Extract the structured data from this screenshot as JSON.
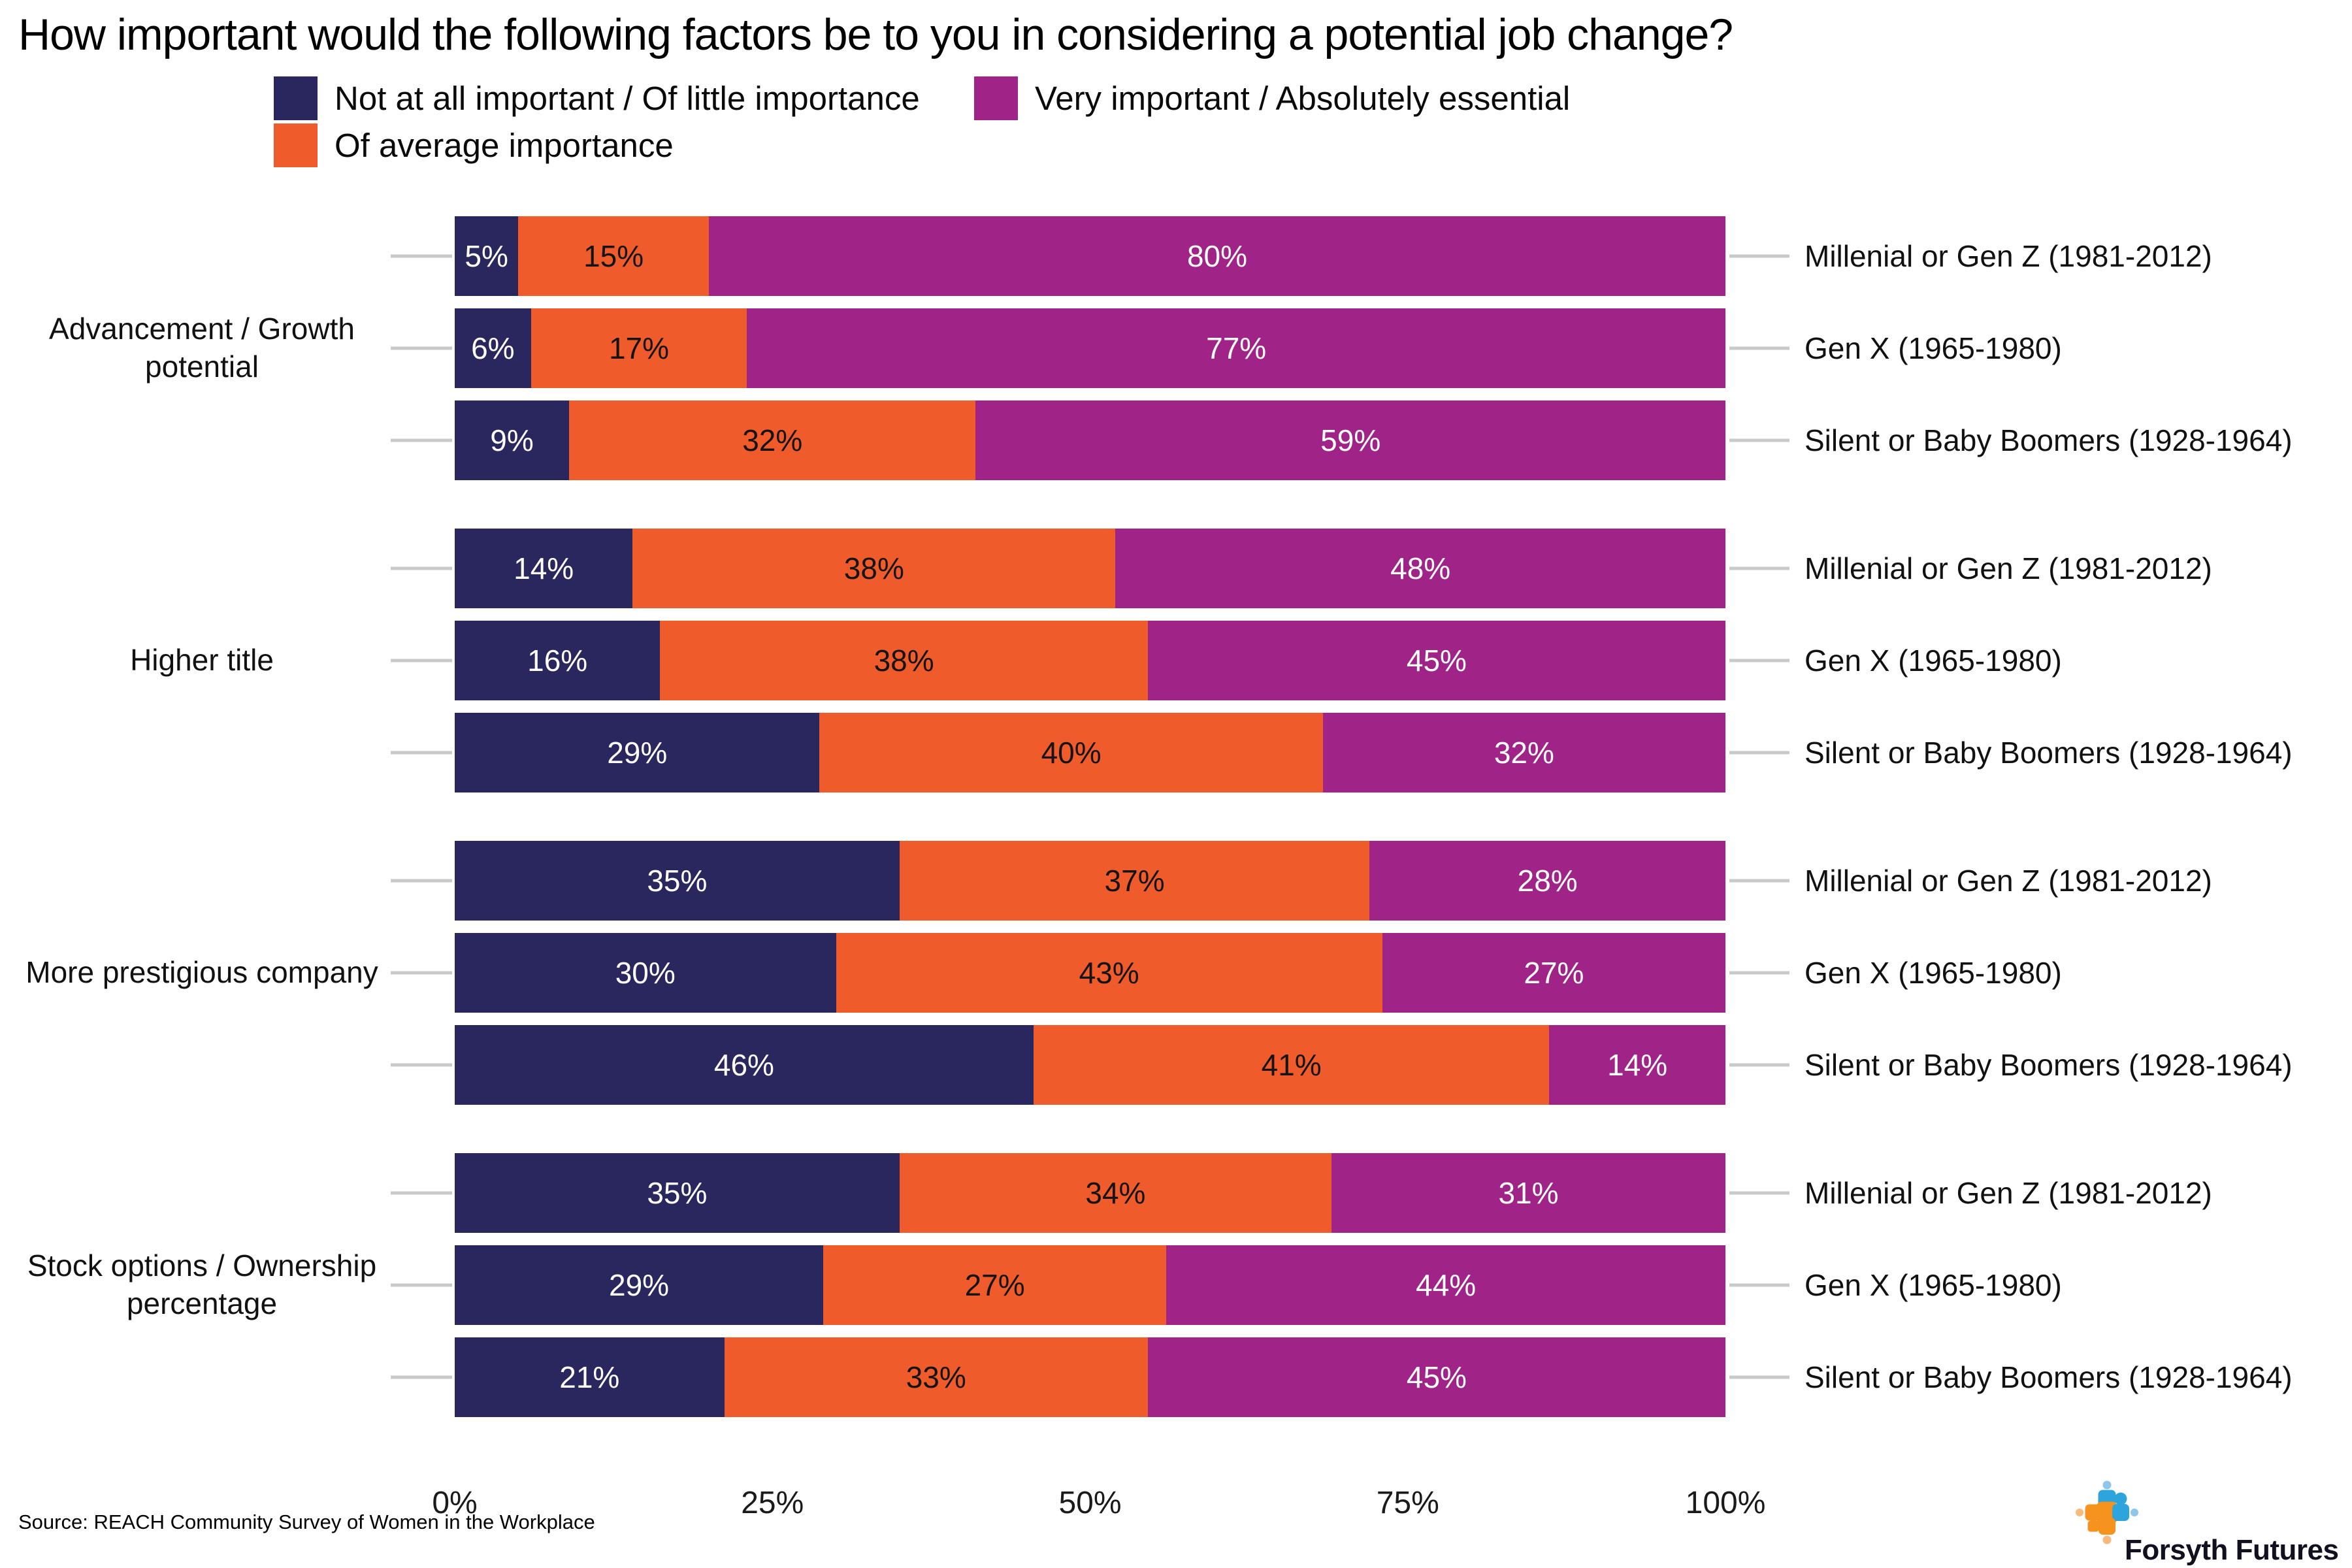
{
  "title": "How important would the following factors be to you in considering a potential job change?",
  "legend": {
    "position": "top-left",
    "items": [
      {
        "label": "Not at all important / Of little importance",
        "color": "#2a265e"
      },
      {
        "label": "Of average importance",
        "color": "#f05b2b"
      },
      {
        "label": "Very important / Absolutely essential",
        "color": "#a02387"
      }
    ]
  },
  "colors": {
    "navy": "#2a265e",
    "orange": "#f05b2b",
    "magenta": "#a02387",
    "tick_line": "#c9c9c9",
    "segment_label_colors": [
      "#ffffff",
      "#141414",
      "#ffffff"
    ],
    "logo_blue": "#2da4dc",
    "logo_light_blue": "#8fc6e9",
    "logo_orange": "#f6921e",
    "logo_light_orange": "#f9bb7d"
  },
  "source": "Source: REACH Community Survey of Women in the Workplace",
  "logo": {
    "text": "Forsyth Futures",
    "mark": "dot-cross-icon"
  },
  "chart_data": {
    "type": "bar",
    "stacked": true,
    "orientation": "horizontal",
    "title": "How important would the following factors be to you in considering a potential job change?",
    "series_names": [
      "Not at all important / Of little importance",
      "Of average importance",
      "Very important / Absolutely essential"
    ],
    "value_unit": "%",
    "xlim": [
      0,
      100
    ],
    "x_ticks": [
      "0%",
      "25%",
      "50%",
      "75%",
      "100%"
    ],
    "grid": false,
    "groups": [
      {
        "category": "Advancement / Growth potential",
        "rows": [
          {
            "label": "Millenial or Gen Z (1981-2012)",
            "values": [
              5,
              15,
              80
            ]
          },
          {
            "label": "Gen X (1965-1980)",
            "values": [
              6,
              17,
              77
            ]
          },
          {
            "label": "Silent or Baby Boomers (1928-1964)",
            "values": [
              9,
              32,
              59
            ]
          }
        ]
      },
      {
        "category": "Higher title",
        "rows": [
          {
            "label": "Millenial or Gen Z (1981-2012)",
            "values": [
              14,
              38,
              48
            ]
          },
          {
            "label": "Gen X (1965-1980)",
            "values": [
              16,
              38,
              45
            ]
          },
          {
            "label": "Silent or Baby Boomers (1928-1964)",
            "values": [
              29,
              40,
              32
            ]
          }
        ]
      },
      {
        "category": "More prestigious company",
        "rows": [
          {
            "label": "Millenial or Gen Z (1981-2012)",
            "values": [
              35,
              37,
              28
            ]
          },
          {
            "label": "Gen X (1965-1980)",
            "values": [
              30,
              43,
              27
            ]
          },
          {
            "label": "Silent or Baby Boomers (1928-1964)",
            "values": [
              46,
              41,
              14
            ]
          }
        ]
      },
      {
        "category": "Stock options / Ownership percentage",
        "rows": [
          {
            "label": "Millenial or Gen Z (1981-2012)",
            "values": [
              35,
              34,
              31
            ]
          },
          {
            "label": "Gen X (1965-1980)",
            "values": [
              29,
              27,
              44
            ]
          },
          {
            "label": "Silent or Baby Boomers (1928-1964)",
            "values": [
              21,
              33,
              45
            ]
          }
        ]
      }
    ]
  }
}
